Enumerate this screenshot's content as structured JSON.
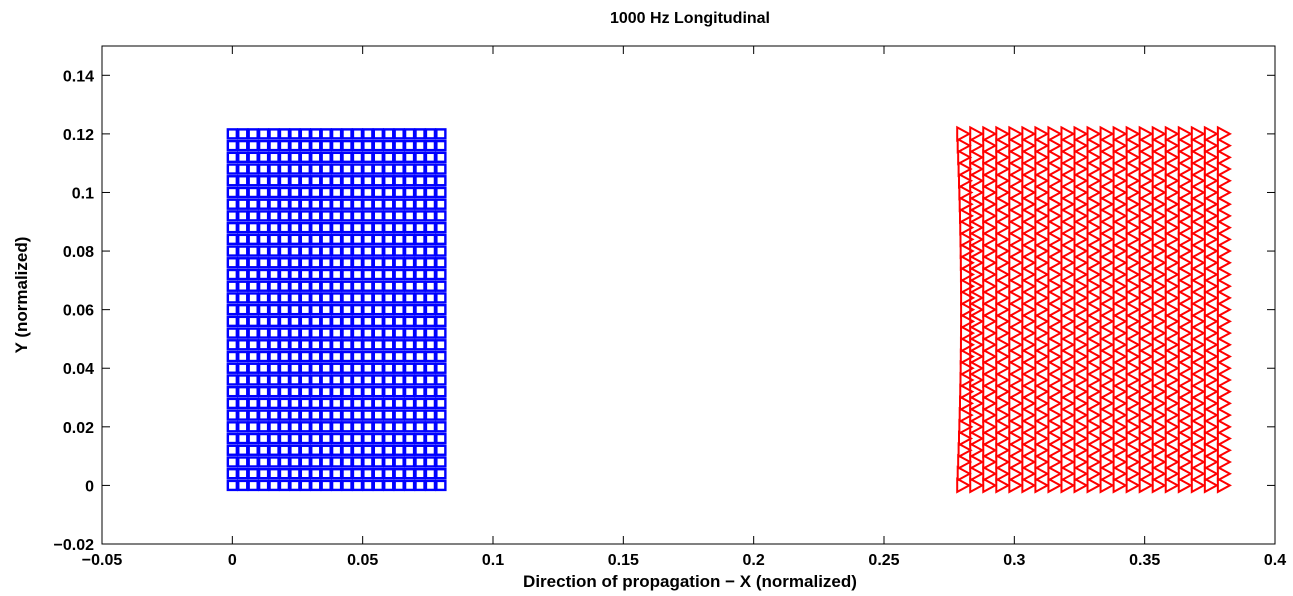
{
  "chart_data": {
    "type": "scatter",
    "title": "1000 Hz Longitudinal",
    "xlabel": "Direction of propagation − X (normalized)",
    "ylabel": "Y (normalized)",
    "xlim": [
      -0.05,
      0.4
    ],
    "ylim": [
      -0.02,
      0.15
    ],
    "x_ticks": [
      -0.05,
      0,
      0.05,
      0.1,
      0.15,
      0.2,
      0.25,
      0.3,
      0.35,
      0.4
    ],
    "x_tick_labels": [
      "−0.05",
      "0",
      "0.05",
      "0.1",
      "0.15",
      "0.2",
      "0.25",
      "0.3",
      "0.35",
      "0.4"
    ],
    "y_ticks": [
      -0.02,
      0,
      0.02,
      0.04,
      0.06,
      0.08,
      0.1,
      0.12,
      0.14
    ],
    "y_tick_labels": [
      "−0.02",
      "0",
      "0.02",
      "0.04",
      "0.06",
      "0.08",
      "0.1",
      "0.12",
      "0.14"
    ],
    "grid": false,
    "box": true,
    "series": [
      {
        "marker": "square",
        "color": "#0000ff",
        "grid": {
          "x_start": 0,
          "x_end": 0.08,
          "x_count": 21,
          "y_start": 0,
          "y_end": 0.12,
          "y_count": 31
        }
      },
      {
        "marker": "triangle-right",
        "color": "#ff0000",
        "grid": {
          "x_start": 0.28,
          "x_end": 0.38,
          "x_count": 21,
          "y_start": 0,
          "y_end": 0.12,
          "y_count": 31
        },
        "left_edge_x_mid": 0.2815
      }
    ]
  }
}
